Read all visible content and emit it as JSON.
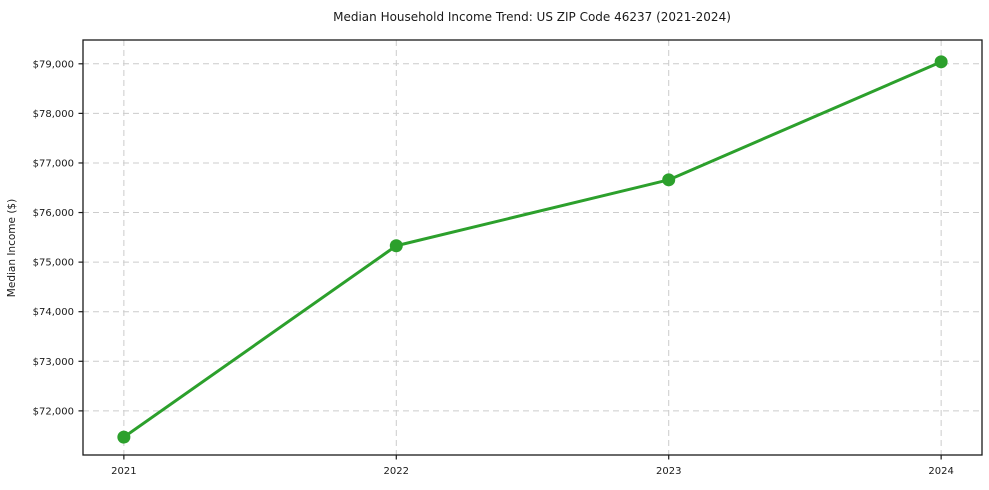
{
  "chart_data": {
    "type": "line",
    "title": "Median Household Income Trend: US ZIP Code 46237 (2021-2024)",
    "xlabel": "",
    "ylabel": "Median Income ($)",
    "x": [
      2021,
      2022,
      2023,
      2024
    ],
    "x_tick_labels": [
      "2021",
      "2022",
      "2023",
      "2024"
    ],
    "values": [
      71470,
      75330,
      76660,
      79040
    ],
    "y_ticks": [
      72000,
      73000,
      74000,
      75000,
      76000,
      77000,
      78000,
      79000
    ],
    "y_tick_labels": [
      "$72,000",
      "$73,000",
      "$74,000",
      "$75,000",
      "$76,000",
      "$77,000",
      "$78,000",
      "$79,000"
    ],
    "xlim": [
      2020.85,
      2024.15
    ],
    "ylim": [
      71110,
      79480
    ],
    "grid": true,
    "grid_color": "#cccccc",
    "line_color": "#2ca02c",
    "marker": "circle",
    "legend_position": "none",
    "background_color": "#ffffff",
    "spine_color": "#1a1a1a"
  }
}
